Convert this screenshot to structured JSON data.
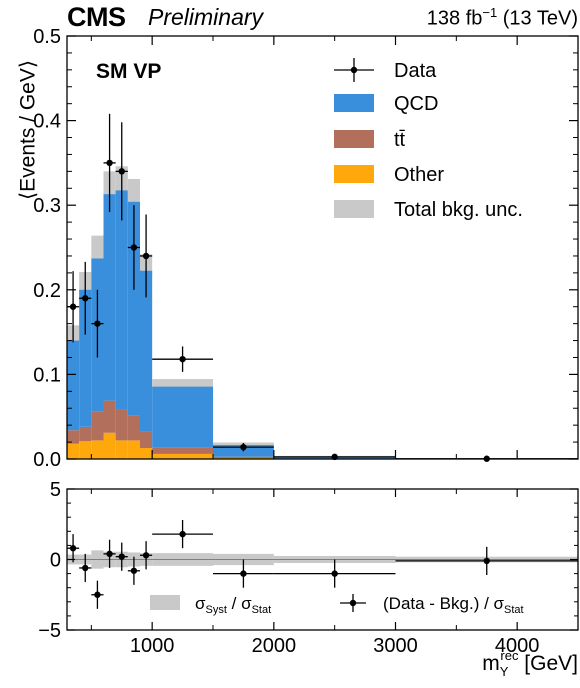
{
  "header": {
    "experiment": "CMS",
    "status": "Preliminary",
    "lumi": "138 fb",
    "lumi_exp": "−1",
    "energy": "(13 TeV)"
  },
  "chart_data": {
    "type": "bar",
    "category_label": "SM VP",
    "xlabel_main": "m",
    "xlabel_sub": "Y",
    "xlabel_sup": "rec",
    "xlabel_unit": "[GeV]",
    "ylabel_top": "⟨Events / GeV⟩",
    "xlim": [
      300,
      4500
    ],
    "ylim_top": [
      0,
      0.5
    ],
    "ylim_ratio": [
      -5,
      5
    ],
    "x_ticks": [
      1000,
      2000,
      3000,
      4000
    ],
    "y_ticks_top": [
      0.0,
      0.1,
      0.2,
      0.3,
      0.4,
      0.5
    ],
    "y_ticks_ratio": [
      -5,
      0,
      5
    ],
    "colors": {
      "qcd": "#3a8fdc",
      "ttbar": "#b26f5c",
      "other": "#fea80c",
      "unc": "#c9c9c9"
    },
    "legend": {
      "data": "Data",
      "qcd": "QCD",
      "ttbar": "tt̄",
      "other": "Other",
      "unc": "Total bkg. unc."
    },
    "ratio_legend": {
      "syst_main": "σ",
      "syst_sub1": "Syst",
      "syst_sep": " / σ",
      "syst_sub2": "Stat",
      "data_main": "(Data - Bkg.) / σ",
      "data_sub": "Stat"
    },
    "bins": [
      {
        "lo": 300,
        "hi": 400,
        "qcd": 0.112,
        "ttbar": 0.016,
        "other": 0.018,
        "unc": 0.012
      },
      {
        "lo": 400,
        "hi": 500,
        "qcd": 0.169,
        "ttbar": 0.017,
        "other": 0.021,
        "unc": 0.014
      },
      {
        "lo": 500,
        "hi": 600,
        "qcd": 0.19,
        "ttbar": 0.034,
        "other": 0.022,
        "unc": 0.018
      },
      {
        "lo": 600,
        "hi": 700,
        "qcd": 0.253,
        "ttbar": 0.038,
        "other": 0.031,
        "unc": 0.018
      },
      {
        "lo": 700,
        "hi": 800,
        "qcd": 0.269,
        "ttbar": 0.036,
        "other": 0.022,
        "unc": 0.019
      },
      {
        "lo": 800,
        "hi": 900,
        "qcd": 0.262,
        "ttbar": 0.029,
        "other": 0.022,
        "unc": 0.018
      },
      {
        "lo": 900,
        "hi": 1000,
        "qcd": 0.196,
        "ttbar": 0.02,
        "other": 0.013,
        "unc": 0.013
      },
      {
        "lo": 1000,
        "hi": 1500,
        "qcd": 0.0745,
        "ttbar": 0.008,
        "other": 0.006,
        "unc": 0.006
      },
      {
        "lo": 1500,
        "hi": 2000,
        "qcd": 0.0148,
        "ttbar": 0.0015,
        "other": 0.0012,
        "unc": 0.002
      },
      {
        "lo": 2000,
        "hi": 3000,
        "qcd": 0.0027,
        "ttbar": 0.0003,
        "other": 0.0002,
        "unc": 0.0005
      },
      {
        "lo": 3000,
        "hi": 4500,
        "qcd": 0.0004,
        "ttbar": 0.0001,
        "other": 0.0001,
        "unc": 0.0002
      }
    ],
    "data_points": [
      {
        "x": 350,
        "xlo": 300,
        "xhi": 400,
        "y": 0.18,
        "err": 0.042
      },
      {
        "x": 450,
        "xlo": 400,
        "xhi": 500,
        "y": 0.19,
        "err": 0.043
      },
      {
        "x": 550,
        "xlo": 500,
        "xhi": 600,
        "y": 0.16,
        "err": 0.04
      },
      {
        "x": 650,
        "xlo": 600,
        "xhi": 700,
        "y": 0.35,
        "err": 0.058
      },
      {
        "x": 750,
        "xlo": 700,
        "xhi": 800,
        "y": 0.34,
        "err": 0.058
      },
      {
        "x": 850,
        "xlo": 800,
        "xhi": 900,
        "y": 0.25,
        "err": 0.05
      },
      {
        "x": 950,
        "xlo": 900,
        "xhi": 1000,
        "y": 0.24,
        "err": 0.049
      },
      {
        "x": 1250,
        "xlo": 1000,
        "xhi": 1500,
        "y": 0.118,
        "err": 0.015
      },
      {
        "x": 1750,
        "xlo": 1500,
        "xhi": 2000,
        "y": 0.014,
        "err": 0.005
      },
      {
        "x": 2500,
        "xlo": 2000,
        "xhi": 3000,
        "y": 0.0025,
        "err": 0.0016
      },
      {
        "x": 3750,
        "xlo": 3000,
        "xhi": 4500,
        "y": 0.0003,
        "err": 0.0004
      }
    ],
    "ratio_points": [
      {
        "x": 350,
        "xlo": 300,
        "xhi": 400,
        "y": 0.8,
        "err": 1
      },
      {
        "x": 450,
        "xlo": 400,
        "xhi": 500,
        "y": -0.6,
        "err": 1
      },
      {
        "x": 550,
        "xlo": 500,
        "xhi": 600,
        "y": -2.5,
        "err": 1
      },
      {
        "x": 650,
        "xlo": 600,
        "xhi": 700,
        "y": 0.4,
        "err": 1
      },
      {
        "x": 750,
        "xlo": 700,
        "xhi": 800,
        "y": 0.2,
        "err": 1
      },
      {
        "x": 850,
        "xlo": 800,
        "xhi": 900,
        "y": -0.8,
        "err": 1
      },
      {
        "x": 950,
        "xlo": 900,
        "xhi": 1000,
        "y": 0.3,
        "err": 1
      },
      {
        "x": 1250,
        "xlo": 1000,
        "xhi": 1500,
        "y": 1.8,
        "err": 1
      },
      {
        "x": 1750,
        "xlo": 1500,
        "xhi": 2000,
        "y": -1.0,
        "err": 1
      },
      {
        "x": 2500,
        "xlo": 2000,
        "xhi": 3000,
        "y": -1.0,
        "err": 1
      },
      {
        "x": 3750,
        "xlo": 3000,
        "xhi": 4500,
        "y": -0.1,
        "err": 1
      }
    ],
    "ratio_syst": [
      {
        "lo": 300,
        "hi": 400,
        "v": 0.35
      },
      {
        "lo": 400,
        "hi": 500,
        "v": 0.35
      },
      {
        "lo": 500,
        "hi": 600,
        "v": 0.65
      },
      {
        "lo": 600,
        "hi": 700,
        "v": 0.55
      },
      {
        "lo": 700,
        "hi": 800,
        "v": 0.55
      },
      {
        "lo": 800,
        "hi": 900,
        "v": 0.5
      },
      {
        "lo": 900,
        "hi": 1000,
        "v": 0.45
      },
      {
        "lo": 1000,
        "hi": 1500,
        "v": 0.45
      },
      {
        "lo": 1500,
        "hi": 2000,
        "v": 0.4
      },
      {
        "lo": 2000,
        "hi": 3000,
        "v": 0.25
      },
      {
        "lo": 3000,
        "hi": 4500,
        "v": 0.2
      }
    ]
  }
}
